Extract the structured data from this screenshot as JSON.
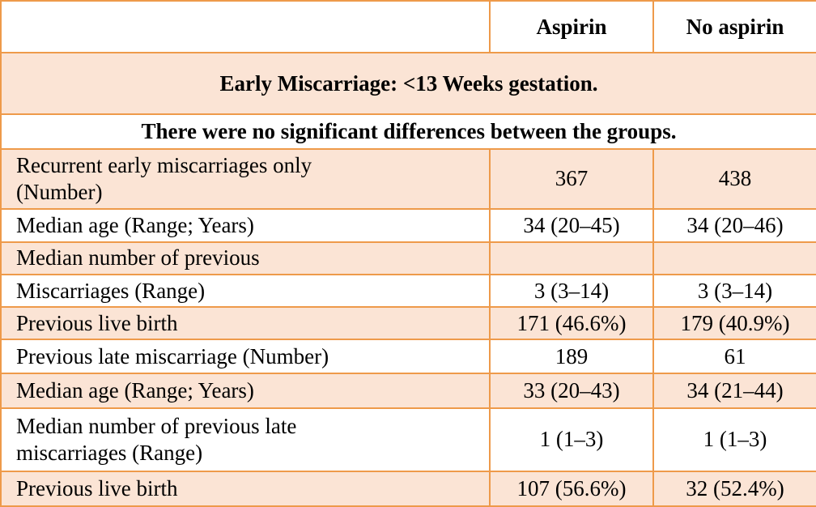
{
  "header": {
    "col_aspirin": "Aspirin",
    "col_no_aspirin": "No aspirin"
  },
  "section_title": "Early Miscarriage: <13 Weeks gestation.",
  "note": "There were no significant differences between the groups.",
  "rows": [
    {
      "label": "Recurrent early miscarriages only (Number)",
      "aspirin": "367",
      "no_aspirin": "438"
    },
    {
      "label": "Median age (Range; Years)",
      "aspirin": "34 (20–45)",
      "no_aspirin": "34 (20–46)"
    },
    {
      "label": "Median number of previous",
      "aspirin": "",
      "no_aspirin": ""
    },
    {
      "label": "Miscarriages (Range)",
      "aspirin": "3 (3–14)",
      "no_aspirin": "3 (3–14)"
    },
    {
      "label": "Previous live birth",
      "aspirin": "171 (46.6%)",
      "no_aspirin": "179 (40.9%)"
    },
    {
      "label": "Previous late miscarriage (Number)",
      "aspirin": "189",
      "no_aspirin": "61"
    },
    {
      "label": "Median age (Range; Years)",
      "aspirin": "33 (20–43)",
      "no_aspirin": "34 (21–44)"
    },
    {
      "label": "Median number of previous late miscarriages (Range)",
      "aspirin": "1 (1–3)",
      "no_aspirin": "1 (1–3)"
    },
    {
      "label": "Previous live birth",
      "aspirin": "107 (56.6%)",
      "no_aspirin": "32 (52.4%)"
    }
  ],
  "colors": {
    "border": "#ee9a4a",
    "shade": "#fbe4d5"
  }
}
